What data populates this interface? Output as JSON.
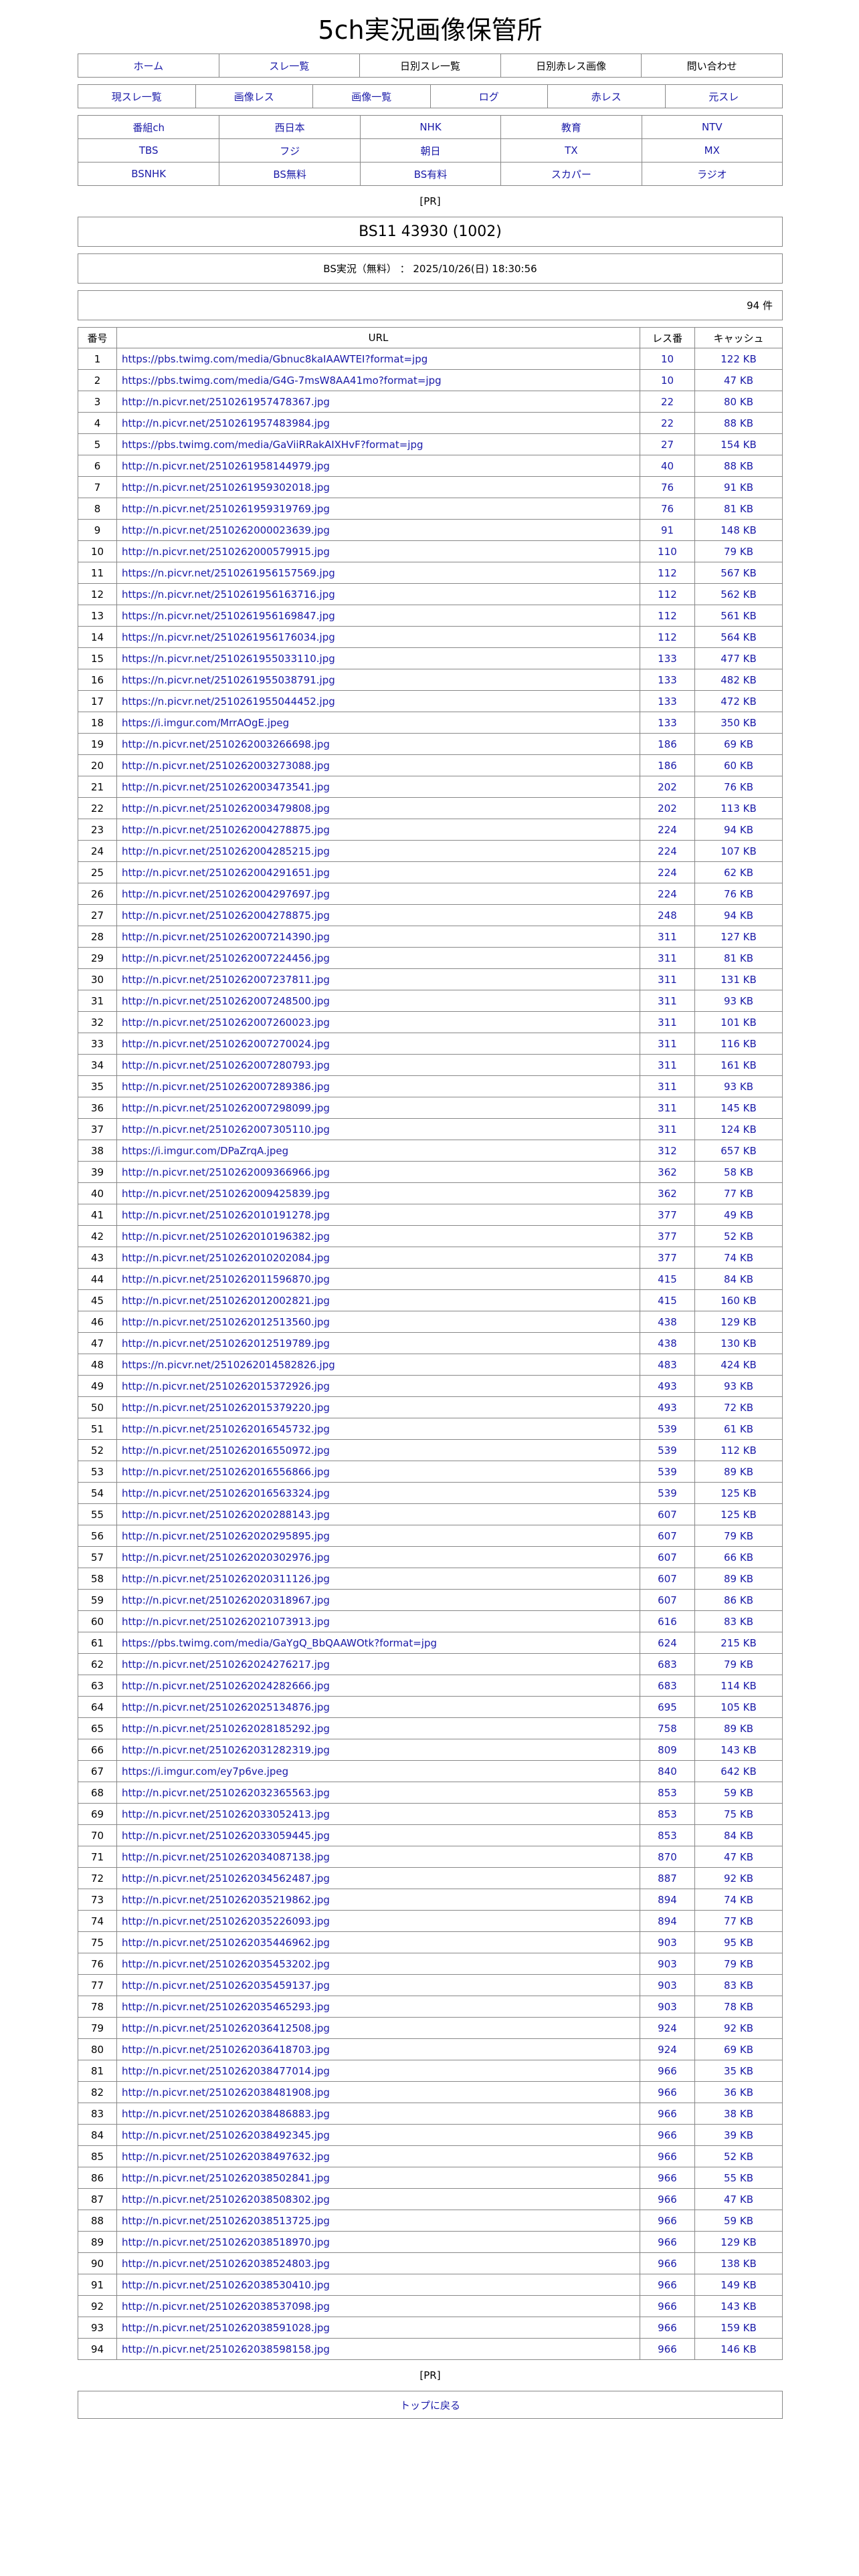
{
  "site_title": "5ch実況画像保管所",
  "nav_primary": [
    {
      "label": "ホーム",
      "link": true
    },
    {
      "label": "スレ一覧",
      "link": true
    },
    {
      "label": "日別スレ一覧",
      "link": false
    },
    {
      "label": "日別赤レス画像",
      "link": false
    },
    {
      "label": "問い合わせ",
      "link": false
    }
  ],
  "nav_secondary": [
    "現スレ一覧",
    "画像レス",
    "画像一覧",
    "ログ",
    "赤レス",
    "元スレ"
  ],
  "channels": [
    "番組ch",
    "西日本",
    "NHK",
    "教育",
    "NTV",
    "TBS",
    "フジ",
    "朝日",
    "TX",
    "MX",
    "BSNHK",
    "BS無料",
    "BS有料",
    "スカパー",
    "ラジオ"
  ],
  "pr_label": "[PR]",
  "thread_title": "BS11 43930 (1002)",
  "thread_info": "BS実況（無料） ： 2025/10/26(日) 18:30:56",
  "count_label": "94 件",
  "colors": {
    "link": "#1a1aa8",
    "border": "#888888"
  },
  "table": {
    "headers": {
      "no": "番号",
      "url": "URL",
      "res": "レス番",
      "cache": "キャッシュ"
    },
    "rows": [
      [
        "1",
        "https://pbs.twimg.com/media/Gbnuc8kaIAAWTEI?format=jpg",
        "10",
        "122 KB"
      ],
      [
        "2",
        "https://pbs.twimg.com/media/G4G-7msW8AA41mo?format=jpg",
        "10",
        "47 KB"
      ],
      [
        "3",
        "http://n.picvr.net/2510261957478367.jpg",
        "22",
        "80 KB"
      ],
      [
        "4",
        "http://n.picvr.net/2510261957483984.jpg",
        "22",
        "88 KB"
      ],
      [
        "5",
        "https://pbs.twimg.com/media/GaViiRRakAIXHvF?format=jpg",
        "27",
        "154 KB"
      ],
      [
        "6",
        "http://n.picvr.net/2510261958144979.jpg",
        "40",
        "88 KB"
      ],
      [
        "7",
        "http://n.picvr.net/2510261959302018.jpg",
        "76",
        "91 KB"
      ],
      [
        "8",
        "http://n.picvr.net/2510261959319769.jpg",
        "76",
        "81 KB"
      ],
      [
        "9",
        "http://n.picvr.net/2510262000023639.jpg",
        "91",
        "148 KB"
      ],
      [
        "10",
        "http://n.picvr.net/2510262000579915.jpg",
        "110",
        "79 KB"
      ],
      [
        "11",
        "https://n.picvr.net/2510261956157569.jpg",
        "112",
        "567 KB"
      ],
      [
        "12",
        "https://n.picvr.net/2510261956163716.jpg",
        "112",
        "562 KB"
      ],
      [
        "13",
        "https://n.picvr.net/2510261956169847.jpg",
        "112",
        "561 KB"
      ],
      [
        "14",
        "https://n.picvr.net/2510261956176034.jpg",
        "112",
        "564 KB"
      ],
      [
        "15",
        "https://n.picvr.net/2510261955033110.jpg",
        "133",
        "477 KB"
      ],
      [
        "16",
        "https://n.picvr.net/2510261955038791.jpg",
        "133",
        "482 KB"
      ],
      [
        "17",
        "https://n.picvr.net/2510261955044452.jpg",
        "133",
        "472 KB"
      ],
      [
        "18",
        "https://i.imgur.com/MrrAOgE.jpeg",
        "133",
        "350 KB"
      ],
      [
        "19",
        "http://n.picvr.net/2510262003266698.jpg",
        "186",
        "69 KB"
      ],
      [
        "20",
        "http://n.picvr.net/2510262003273088.jpg",
        "186",
        "60 KB"
      ],
      [
        "21",
        "http://n.picvr.net/2510262003473541.jpg",
        "202",
        "76 KB"
      ],
      [
        "22",
        "http://n.picvr.net/2510262003479808.jpg",
        "202",
        "113 KB"
      ],
      [
        "23",
        "http://n.picvr.net/2510262004278875.jpg",
        "224",
        "94 KB"
      ],
      [
        "24",
        "http://n.picvr.net/2510262004285215.jpg",
        "224",
        "107 KB"
      ],
      [
        "25",
        "http://n.picvr.net/2510262004291651.jpg",
        "224",
        "62 KB"
      ],
      [
        "26",
        "http://n.picvr.net/2510262004297697.jpg",
        "224",
        "76 KB"
      ],
      [
        "27",
        "http://n.picvr.net/2510262004278875.jpg",
        "248",
        "94 KB"
      ],
      [
        "28",
        "http://n.picvr.net/2510262007214390.jpg",
        "311",
        "127 KB"
      ],
      [
        "29",
        "http://n.picvr.net/2510262007224456.jpg",
        "311",
        "81 KB"
      ],
      [
        "30",
        "http://n.picvr.net/2510262007237811.jpg",
        "311",
        "131 KB"
      ],
      [
        "31",
        "http://n.picvr.net/2510262007248500.jpg",
        "311",
        "93 KB"
      ],
      [
        "32",
        "http://n.picvr.net/2510262007260023.jpg",
        "311",
        "101 KB"
      ],
      [
        "33",
        "http://n.picvr.net/2510262007270024.jpg",
        "311",
        "116 KB"
      ],
      [
        "34",
        "http://n.picvr.net/2510262007280793.jpg",
        "311",
        "161 KB"
      ],
      [
        "35",
        "http://n.picvr.net/2510262007289386.jpg",
        "311",
        "93 KB"
      ],
      [
        "36",
        "http://n.picvr.net/2510262007298099.jpg",
        "311",
        "145 KB"
      ],
      [
        "37",
        "http://n.picvr.net/2510262007305110.jpg",
        "311",
        "124 KB"
      ],
      [
        "38",
        "https://i.imgur.com/DPaZrqA.jpeg",
        "312",
        "657 KB"
      ],
      [
        "39",
        "http://n.picvr.net/2510262009366966.jpg",
        "362",
        "58 KB"
      ],
      [
        "40",
        "http://n.picvr.net/2510262009425839.jpg",
        "362",
        "77 KB"
      ],
      [
        "41",
        "http://n.picvr.net/2510262010191278.jpg",
        "377",
        "49 KB"
      ],
      [
        "42",
        "http://n.picvr.net/2510262010196382.jpg",
        "377",
        "52 KB"
      ],
      [
        "43",
        "http://n.picvr.net/2510262010202084.jpg",
        "377",
        "74 KB"
      ],
      [
        "44",
        "http://n.picvr.net/2510262011596870.jpg",
        "415",
        "84 KB"
      ],
      [
        "45",
        "http://n.picvr.net/2510262012002821.jpg",
        "415",
        "160 KB"
      ],
      [
        "46",
        "http://n.picvr.net/2510262012513560.jpg",
        "438",
        "129 KB"
      ],
      [
        "47",
        "http://n.picvr.net/2510262012519789.jpg",
        "438",
        "130 KB"
      ],
      [
        "48",
        "https://n.picvr.net/2510262014582826.jpg",
        "483",
        "424 KB"
      ],
      [
        "49",
        "http://n.picvr.net/2510262015372926.jpg",
        "493",
        "93 KB"
      ],
      [
        "50",
        "http://n.picvr.net/2510262015379220.jpg",
        "493",
        "72 KB"
      ],
      [
        "51",
        "http://n.picvr.net/2510262016545732.jpg",
        "539",
        "61 KB"
      ],
      [
        "52",
        "http://n.picvr.net/2510262016550972.jpg",
        "539",
        "112 KB"
      ],
      [
        "53",
        "http://n.picvr.net/2510262016556866.jpg",
        "539",
        "89 KB"
      ],
      [
        "54",
        "http://n.picvr.net/2510262016563324.jpg",
        "539",
        "125 KB"
      ],
      [
        "55",
        "http://n.picvr.net/2510262020288143.jpg",
        "607",
        "125 KB"
      ],
      [
        "56",
        "http://n.picvr.net/2510262020295895.jpg",
        "607",
        "79 KB"
      ],
      [
        "57",
        "http://n.picvr.net/2510262020302976.jpg",
        "607",
        "66 KB"
      ],
      [
        "58",
        "http://n.picvr.net/2510262020311126.jpg",
        "607",
        "89 KB"
      ],
      [
        "59",
        "http://n.picvr.net/2510262020318967.jpg",
        "607",
        "86 KB"
      ],
      [
        "60",
        "http://n.picvr.net/2510262021073913.jpg",
        "616",
        "83 KB"
      ],
      [
        "61",
        "https://pbs.twimg.com/media/GaYgQ_BbQAAWOtk?format=jpg",
        "624",
        "215 KB"
      ],
      [
        "62",
        "http://n.picvr.net/2510262024276217.jpg",
        "683",
        "79 KB"
      ],
      [
        "63",
        "http://n.picvr.net/2510262024282666.jpg",
        "683",
        "114 KB"
      ],
      [
        "64",
        "http://n.picvr.net/2510262025134876.jpg",
        "695",
        "105 KB"
      ],
      [
        "65",
        "http://n.picvr.net/2510262028185292.jpg",
        "758",
        "89 KB"
      ],
      [
        "66",
        "http://n.picvr.net/2510262031282319.jpg",
        "809",
        "143 KB"
      ],
      [
        "67",
        "https://i.imgur.com/ey7p6ve.jpeg",
        "840",
        "642 KB"
      ],
      [
        "68",
        "http://n.picvr.net/2510262032365563.jpg",
        "853",
        "59 KB"
      ],
      [
        "69",
        "http://n.picvr.net/2510262033052413.jpg",
        "853",
        "75 KB"
      ],
      [
        "70",
        "http://n.picvr.net/2510262033059445.jpg",
        "853",
        "84 KB"
      ],
      [
        "71",
        "http://n.picvr.net/2510262034087138.jpg",
        "870",
        "47 KB"
      ],
      [
        "72",
        "http://n.picvr.net/2510262034562487.jpg",
        "887",
        "92 KB"
      ],
      [
        "73",
        "http://n.picvr.net/2510262035219862.jpg",
        "894",
        "74 KB"
      ],
      [
        "74",
        "http://n.picvr.net/2510262035226093.jpg",
        "894",
        "77 KB"
      ],
      [
        "75",
        "http://n.picvr.net/2510262035446962.jpg",
        "903",
        "95 KB"
      ],
      [
        "76",
        "http://n.picvr.net/2510262035453202.jpg",
        "903",
        "79 KB"
      ],
      [
        "77",
        "http://n.picvr.net/2510262035459137.jpg",
        "903",
        "83 KB"
      ],
      [
        "78",
        "http://n.picvr.net/2510262035465293.jpg",
        "903",
        "78 KB"
      ],
      [
        "79",
        "http://n.picvr.net/2510262036412508.jpg",
        "924",
        "92 KB"
      ],
      [
        "80",
        "http://n.picvr.net/2510262036418703.jpg",
        "924",
        "69 KB"
      ],
      [
        "81",
        "http://n.picvr.net/2510262038477014.jpg",
        "966",
        "35 KB"
      ],
      [
        "82",
        "http://n.picvr.net/2510262038481908.jpg",
        "966",
        "36 KB"
      ],
      [
        "83",
        "http://n.picvr.net/2510262038486883.jpg",
        "966",
        "38 KB"
      ],
      [
        "84",
        "http://n.picvr.net/2510262038492345.jpg",
        "966",
        "39 KB"
      ],
      [
        "85",
        "http://n.picvr.net/2510262038497632.jpg",
        "966",
        "52 KB"
      ],
      [
        "86",
        "http://n.picvr.net/2510262038502841.jpg",
        "966",
        "55 KB"
      ],
      [
        "87",
        "http://n.picvr.net/2510262038508302.jpg",
        "966",
        "47 KB"
      ],
      [
        "88",
        "http://n.picvr.net/2510262038513725.jpg",
        "966",
        "59 KB"
      ],
      [
        "89",
        "http://n.picvr.net/2510262038518970.jpg",
        "966",
        "129 KB"
      ],
      [
        "90",
        "http://n.picvr.net/2510262038524803.jpg",
        "966",
        "138 KB"
      ],
      [
        "91",
        "http://n.picvr.net/2510262038530410.jpg",
        "966",
        "149 KB"
      ],
      [
        "92",
        "http://n.picvr.net/2510262038537098.jpg",
        "966",
        "143 KB"
      ],
      [
        "93",
        "http://n.picvr.net/2510262038591028.jpg",
        "966",
        "159 KB"
      ],
      [
        "94",
        "http://n.picvr.net/2510262038598158.jpg",
        "966",
        "146 KB"
      ]
    ]
  },
  "back_to_top": "トップに戻る"
}
